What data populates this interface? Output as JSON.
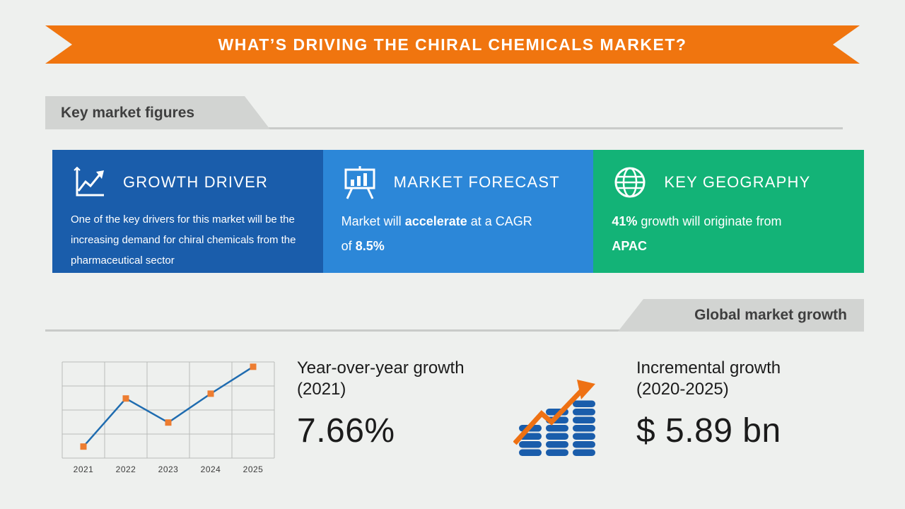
{
  "banner": {
    "title": "WHAT’S DRIVING THE CHIRAL CHEMICALS MARKET?"
  },
  "section_tabs": {
    "key_market_figures": "Key market figures",
    "global_market_growth": "Global market growth"
  },
  "cards": [
    {
      "title": "GROWTH DRIVER",
      "icon": "growth-chart-icon",
      "color": "#1a5dab",
      "text": [
        {
          "t": "One of the key drivers for this market will be the increasing demand for chiral chemicals from the pharmaceutical sector",
          "b": false
        }
      ]
    },
    {
      "title": "MARKET FORECAST",
      "icon": "presentation-chart-icon",
      "color": "#2c87d8",
      "text": [
        {
          "t": "Market will ",
          "b": false
        },
        {
          "t": "accelerate",
          "b": true
        },
        {
          "t": " at a CAGR of ",
          "b": false
        },
        {
          "t": "8.5%",
          "b": true
        }
      ]
    },
    {
      "title": "KEY GEOGRAPHY",
      "icon": "globe-icon",
      "color": "#13b377",
      "text": [
        {
          "t": "41%",
          "b": true
        },
        {
          "t": " growth will originate from ",
          "b": false
        },
        {
          "t": "APAC",
          "b": true
        }
      ]
    }
  ],
  "chart_data": {
    "type": "line",
    "x": [
      "2021",
      "2022",
      "2023",
      "2024",
      "2025"
    ],
    "values": [
      12,
      62,
      37,
      67,
      95
    ],
    "ylim": [
      0,
      100
    ],
    "title": "",
    "xlabel": "",
    "ylabel": "",
    "grid": true,
    "legend": "none",
    "note": "relative market growth trend; y-axis unlabeled in source"
  },
  "stats": [
    {
      "label": "Year-over-year growth (2021)",
      "value": "7.66%"
    },
    {
      "label": "Incremental growth (2020-2025)",
      "value": "$ 5.89 bn",
      "icon": "coin-stacks-growth-icon"
    }
  ],
  "colors": {
    "banner": "#f0750f",
    "tab_background": "#d2d4d2",
    "chart_line": "#1f6cb0",
    "chart_marker": "#ed7d31",
    "accent_arrow": "#ee7113",
    "coin_blue": "#1a5dab"
  }
}
